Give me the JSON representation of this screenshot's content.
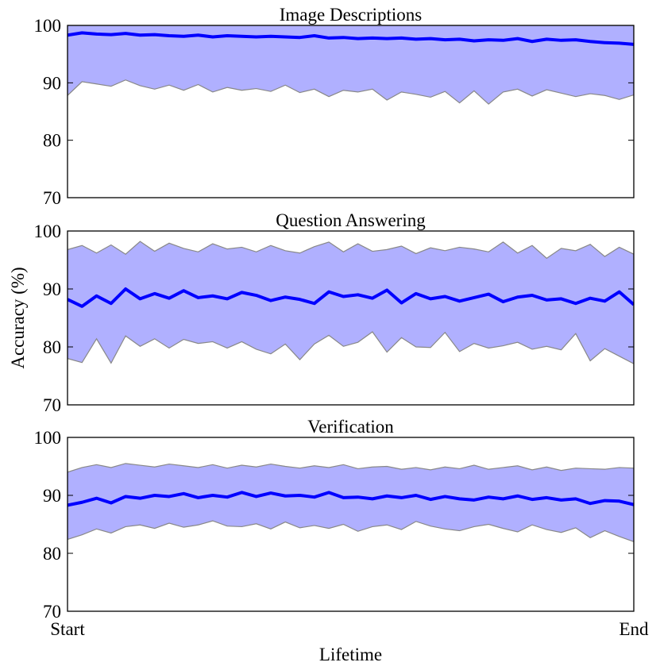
{
  "chart_data": [
    {
      "type": "line",
      "title": "Image Descriptions",
      "x": [
        0,
        1,
        2,
        3,
        4,
        5,
        6,
        7,
        8,
        9,
        10,
        11,
        12,
        13,
        14,
        15,
        16,
        17,
        18,
        19,
        20,
        21,
        22,
        23,
        24,
        25,
        26,
        27,
        28,
        29,
        30,
        31,
        32,
        33,
        34,
        35,
        36,
        37,
        38,
        39
      ],
      "xlim": [
        0,
        39
      ],
      "ylim": [
        70,
        100
      ],
      "yticks": [
        70,
        80,
        90,
        100
      ],
      "series": [
        {
          "color": "#0000ff",
          "values": [
            98.3,
            98.7,
            98.5,
            98.4,
            98.6,
            98.3,
            98.4,
            98.2,
            98.1,
            98.3,
            98.0,
            98.2,
            98.1,
            98.0,
            98.1,
            98.0,
            97.9,
            98.2,
            97.8,
            97.9,
            97.7,
            97.8,
            97.7,
            97.8,
            97.6,
            97.7,
            97.5,
            97.6,
            97.3,
            97.5,
            97.4,
            97.7,
            97.2,
            97.6,
            97.4,
            97.5,
            97.2,
            97.0,
            96.9,
            96.7
          ]
        }
      ],
      "band": {
        "color": "#b0b0ff",
        "lower": [
          87.8,
          90.2,
          89.8,
          89.4,
          90.5,
          89.5,
          88.9,
          89.6,
          88.7,
          89.7,
          88.4,
          89.2,
          88.7,
          89.0,
          88.5,
          89.6,
          88.3,
          88.9,
          87.6,
          88.7,
          88.4,
          88.9,
          87.0,
          88.4,
          88.0,
          87.5,
          88.5,
          86.5,
          88.6,
          86.3,
          88.4,
          88.9,
          87.7,
          88.8,
          88.2,
          87.6,
          88.1,
          87.8,
          87.1,
          87.9
        ],
        "upper": [
          100,
          100,
          100,
          100,
          100,
          100,
          100,
          100,
          100,
          100,
          100,
          100,
          100,
          100,
          100,
          100,
          100,
          100,
          100,
          100,
          100,
          100,
          100,
          100,
          100,
          100,
          100,
          100,
          100,
          100,
          100,
          100,
          100,
          100,
          100,
          100,
          100,
          100,
          100,
          100
        ]
      }
    },
    {
      "type": "line",
      "title": "Question Answering",
      "ylabel": "Accuracy (%)",
      "x": [
        0,
        1,
        2,
        3,
        4,
        5,
        6,
        7,
        8,
        9,
        10,
        11,
        12,
        13,
        14,
        15,
        16,
        17,
        18,
        19,
        20,
        21,
        22,
        23,
        24,
        25,
        26,
        27,
        28,
        29,
        30,
        31,
        32,
        33,
        34,
        35,
        36,
        37,
        38,
        39
      ],
      "xlim": [
        0,
        39
      ],
      "ylim": [
        70,
        100
      ],
      "yticks": [
        70,
        80,
        90,
        100
      ],
      "series": [
        {
          "color": "#0000ff",
          "values": [
            88.2,
            87.0,
            88.8,
            87.5,
            90.0,
            88.3,
            89.2,
            88.4,
            89.7,
            88.5,
            88.8,
            88.3,
            89.4,
            88.9,
            88.0,
            88.6,
            88.2,
            87.5,
            89.5,
            88.7,
            89.0,
            88.4,
            89.8,
            87.6,
            89.2,
            88.3,
            88.7,
            87.9,
            88.5,
            89.1,
            87.8,
            88.6,
            88.9,
            88.1,
            88.3,
            87.5,
            88.4,
            87.9,
            89.5,
            87.3
          ]
        }
      ],
      "band": {
        "color": "#b0b0ff",
        "lower": [
          78.0,
          77.3,
          81.4,
          77.2,
          81.9,
          80.1,
          81.4,
          79.8,
          81.3,
          80.6,
          80.9,
          79.8,
          80.9,
          79.6,
          78.8,
          80.5,
          77.8,
          80.5,
          82.0,
          80.1,
          80.8,
          82.6,
          79.1,
          81.6,
          80.0,
          79.9,
          82.5,
          79.2,
          80.6,
          79.8,
          80.2,
          80.8,
          79.6,
          80.1,
          79.5,
          82.3,
          77.6,
          79.7,
          78.4,
          77.1
        ],
        "upper": [
          96.8,
          97.5,
          96.2,
          97.6,
          96.0,
          98.2,
          96.5,
          97.9,
          97.0,
          96.4,
          97.8,
          96.9,
          97.2,
          96.4,
          97.5,
          96.6,
          96.2,
          97.3,
          98.1,
          96.4,
          97.8,
          96.5,
          96.8,
          97.4,
          96.1,
          97.1,
          96.6,
          97.2,
          96.9,
          96.4,
          98.1,
          96.2,
          97.5,
          95.3,
          97.0,
          96.6,
          97.7,
          95.6,
          97.2,
          96.0
        ]
      }
    },
    {
      "type": "line",
      "title": "Verification",
      "xlabel": "Lifetime",
      "x": [
        0,
        1,
        2,
        3,
        4,
        5,
        6,
        7,
        8,
        9,
        10,
        11,
        12,
        13,
        14,
        15,
        16,
        17,
        18,
        19,
        20,
        21,
        22,
        23,
        24,
        25,
        26,
        27,
        28,
        29,
        30,
        31,
        32,
        33,
        34,
        35,
        36,
        37,
        38,
        39
      ],
      "xlim": [
        0,
        39
      ],
      "ylim": [
        70,
        100
      ],
      "yticks": [
        70,
        80,
        90,
        100
      ],
      "xticks": [
        {
          "value": 0,
          "label": "Start"
        },
        {
          "value": 39,
          "label": "End"
        }
      ],
      "series": [
        {
          "color": "#0000ff",
          "values": [
            88.3,
            88.8,
            89.5,
            88.7,
            89.8,
            89.5,
            90.0,
            89.8,
            90.3,
            89.6,
            90.0,
            89.7,
            90.5,
            89.8,
            90.4,
            89.9,
            90.0,
            89.7,
            90.5,
            89.6,
            89.7,
            89.4,
            89.9,
            89.6,
            90.0,
            89.3,
            89.8,
            89.4,
            89.2,
            89.7,
            89.4,
            89.9,
            89.3,
            89.6,
            89.2,
            89.4,
            88.6,
            89.1,
            89.0,
            88.4
          ]
        }
      ],
      "band": {
        "color": "#b0b0ff",
        "lower": [
          82.4,
          83.2,
          84.2,
          83.5,
          84.6,
          84.9,
          84.3,
          85.2,
          84.5,
          84.9,
          85.6,
          84.7,
          84.6,
          85.1,
          84.2,
          85.4,
          84.4,
          84.8,
          84.3,
          85.0,
          83.8,
          84.6,
          84.9,
          84.1,
          85.5,
          84.7,
          84.2,
          83.9,
          84.6,
          85.0,
          84.3,
          83.7,
          84.9,
          84.1,
          83.6,
          84.4,
          82.7,
          83.9,
          82.9,
          82.0
        ],
        "upper": [
          94.0,
          94.8,
          95.3,
          94.8,
          95.5,
          95.2,
          94.9,
          95.4,
          95.1,
          94.8,
          95.3,
          94.7,
          95.2,
          94.9,
          95.4,
          95.0,
          94.7,
          95.1,
          94.8,
          95.3,
          94.6,
          94.9,
          95.0,
          94.5,
          94.8,
          94.4,
          94.9,
          94.6,
          95.2,
          94.5,
          94.8,
          95.1,
          94.4,
          94.9,
          94.3,
          94.7,
          94.6,
          94.5,
          94.8,
          94.7
        ]
      }
    }
  ]
}
